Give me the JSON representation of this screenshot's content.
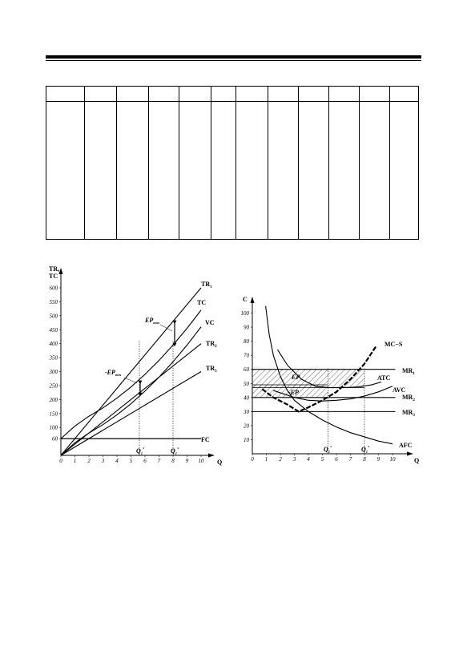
{
  "table": {
    "columns": 12,
    "header": [
      "",
      "",
      "",
      "",
      "",
      "",
      "",
      "",
      "",
      "",
      "",
      ""
    ]
  },
  "chart_data": [
    {
      "type": "line",
      "ylabel_line1": "TR,",
      "ylabel_line2": "TC",
      "xlabel": "Q",
      "xlim": [
        0,
        10
      ],
      "ylim": [
        0,
        600
      ],
      "x_ticks": [
        "0",
        "1",
        "2",
        "3",
        "4",
        "5",
        "6",
        "7",
        "8",
        "9",
        "10"
      ],
      "y_ticks": [
        "60",
        "100",
        "150",
        "200",
        "250",
        "300",
        "350",
        "400",
        "450",
        "500",
        "550",
        "600"
      ],
      "series": [
        {
          "name": "TR1",
          "x": [
            0,
            10
          ],
          "y": [
            0,
            600
          ]
        },
        {
          "name": "TC",
          "x": [
            0,
            1,
            2,
            3,
            4,
            5,
            6,
            7,
            8,
            9,
            10
          ],
          "y": [
            60,
            105,
            140,
            170,
            205,
            245,
            290,
            340,
            395,
            455,
            520
          ]
        },
        {
          "name": "VC",
          "x": [
            0,
            1,
            2,
            3,
            4,
            5,
            6,
            7,
            8,
            9,
            10
          ],
          "y": [
            0,
            45,
            80,
            110,
            145,
            185,
            230,
            280,
            335,
            395,
            460
          ]
        },
        {
          "name": "TR2",
          "x": [
            0,
            10
          ],
          "y": [
            0,
            400
          ]
        },
        {
          "name": "TR3",
          "x": [
            0,
            10
          ],
          "y": [
            0,
            300
          ]
        },
        {
          "name": "FC",
          "x": [
            0,
            10
          ],
          "y": [
            60,
            60
          ]
        }
      ],
      "curve_labels": {
        "TR1": "TR",
        "TR1_sub": "1",
        "TC": "TC",
        "VC": "VC",
        "TR2": "TR",
        "TR2_sub": "2",
        "TR3": "TR",
        "TR3_sub": "3",
        "FC": "FC"
      },
      "annotations": {
        "ep_max": "EP",
        "ep_max_sub": "max",
        "neg_ep_min": "-EP",
        "neg_ep_min_sub": "min",
        "q1": "Q",
        "q1_sub": "1",
        "q1_sup": "*",
        "q2": "Q",
        "q2_sub": "1",
        "q2_sup": "*",
        "q_lines": [
          5.6,
          8
        ]
      }
    },
    {
      "type": "line",
      "ylabel": "C",
      "xlabel": "Q",
      "xlim": [
        0,
        10
      ],
      "ylim": [
        0,
        110
      ],
      "x_ticks": [
        "0",
        "1",
        "2",
        "3",
        "4",
        "5",
        "6",
        "7",
        "8",
        "9",
        "10"
      ],
      "y_ticks": [
        "10",
        "20",
        "30",
        "40",
        "50",
        "60",
        "70",
        "80",
        "90",
        "100"
      ],
      "series": [
        {
          "name": "MR1",
          "x": [
            0,
            10.2
          ],
          "y": [
            60,
            60
          ]
        },
        {
          "name": "MR2",
          "x": [
            0,
            10.2
          ],
          "y": [
            40,
            40
          ]
        },
        {
          "name": "MR3",
          "x": [
            0,
            10.2
          ],
          "y": [
            30,
            30
          ]
        },
        {
          "name": "AFC",
          "x": [
            0.95,
            1.2,
            1.5,
            2,
            2.5,
            3,
            4,
            5,
            6,
            7,
            8,
            9,
            10
          ],
          "y": [
            105,
            85,
            70,
            55,
            45,
            38,
            30,
            24,
            19,
            15,
            12,
            9,
            7
          ]
        },
        {
          "name": "ATC",
          "x": [
            1.8,
            2.5,
            3.5,
            4.5,
            5.5,
            6.5,
            7.5,
            8.5,
            9.2
          ],
          "y": [
            74,
            63,
            53,
            48,
            47,
            47,
            47.5,
            49,
            51
          ]
        },
        {
          "name": "AVC",
          "x": [
            1.5,
            3,
            4,
            5,
            6,
            7,
            8,
            9,
            10
          ],
          "y": [
            45,
            40,
            38,
            37.5,
            38,
            39,
            41,
            44,
            48
          ]
        },
        {
          "name": "MC-S",
          "x": [
            0.7,
            1.5,
            2.5,
            3.3,
            4,
            5,
            6,
            7,
            8,
            8.8
          ],
          "y": [
            46,
            40,
            35,
            30,
            33,
            38,
            44,
            53,
            64,
            76
          ]
        }
      ],
      "curve_labels": {
        "MR1": "MR",
        "MR1_sub": "1",
        "MR2": "MR",
        "MR2_sub": "2",
        "MR3": "MR",
        "MR3_sub": "3",
        "AFC": "AFC",
        "ATC": "ATC",
        "AVC": "AVC",
        "MCS": "MC−S"
      },
      "annotations": {
        "ep": "EP",
        "neg_ep": "-EP",
        "q1": "Q",
        "q1_sub": "1",
        "q1_sup": "*",
        "q2": "Q",
        "q2_sub": "1",
        "q2_sup": "*",
        "q_lines": [
          5.4,
          8
        ]
      }
    }
  ]
}
